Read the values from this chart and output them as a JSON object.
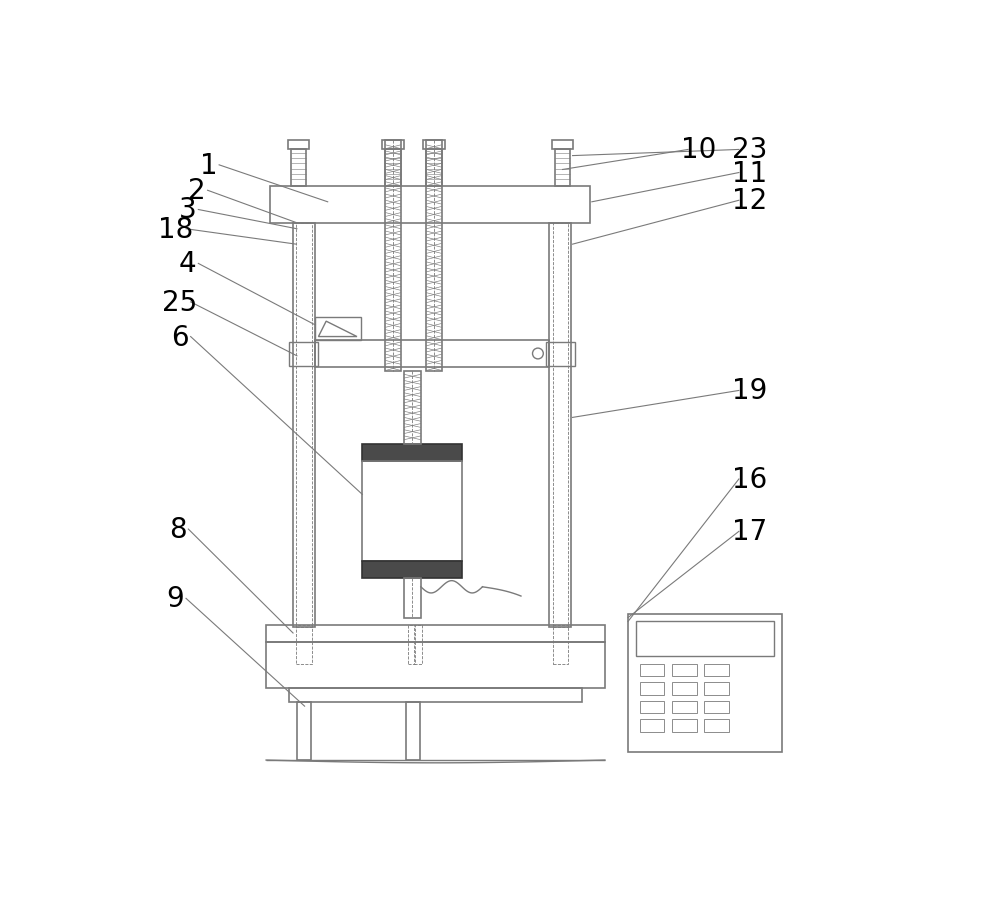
{
  "bg_color": "#ffffff",
  "line_color": "#7a7a7a",
  "dark_color": "#333333",
  "label_color": "#000000",
  "lw": 1.0,
  "lw_thin": 0.6,
  "lw_thick": 1.2
}
